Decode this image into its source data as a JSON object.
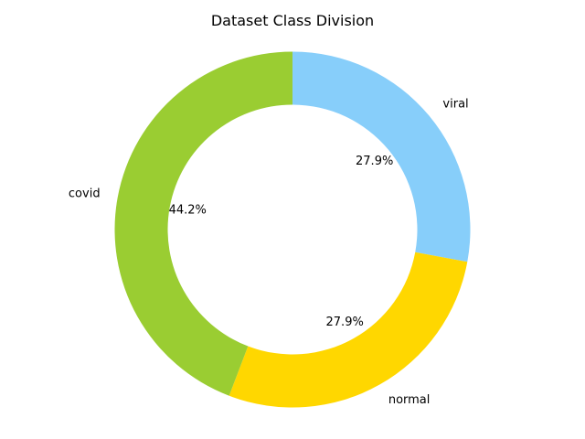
{
  "chart_data": {
    "type": "pie",
    "title": "Dataset Class Division",
    "donut": true,
    "start": "top",
    "direction": "clockwise",
    "slices": [
      {
        "label": "viral",
        "value": 27.9,
        "pct_label": "27.9%",
        "color": "#87CEFA"
      },
      {
        "label": "normal",
        "value": 27.9,
        "pct_label": "27.9%",
        "color": "#FFD700"
      },
      {
        "label": "covid",
        "value": 44.2,
        "pct_label": "44.2%",
        "color": "#9ACD32"
      }
    ]
  }
}
